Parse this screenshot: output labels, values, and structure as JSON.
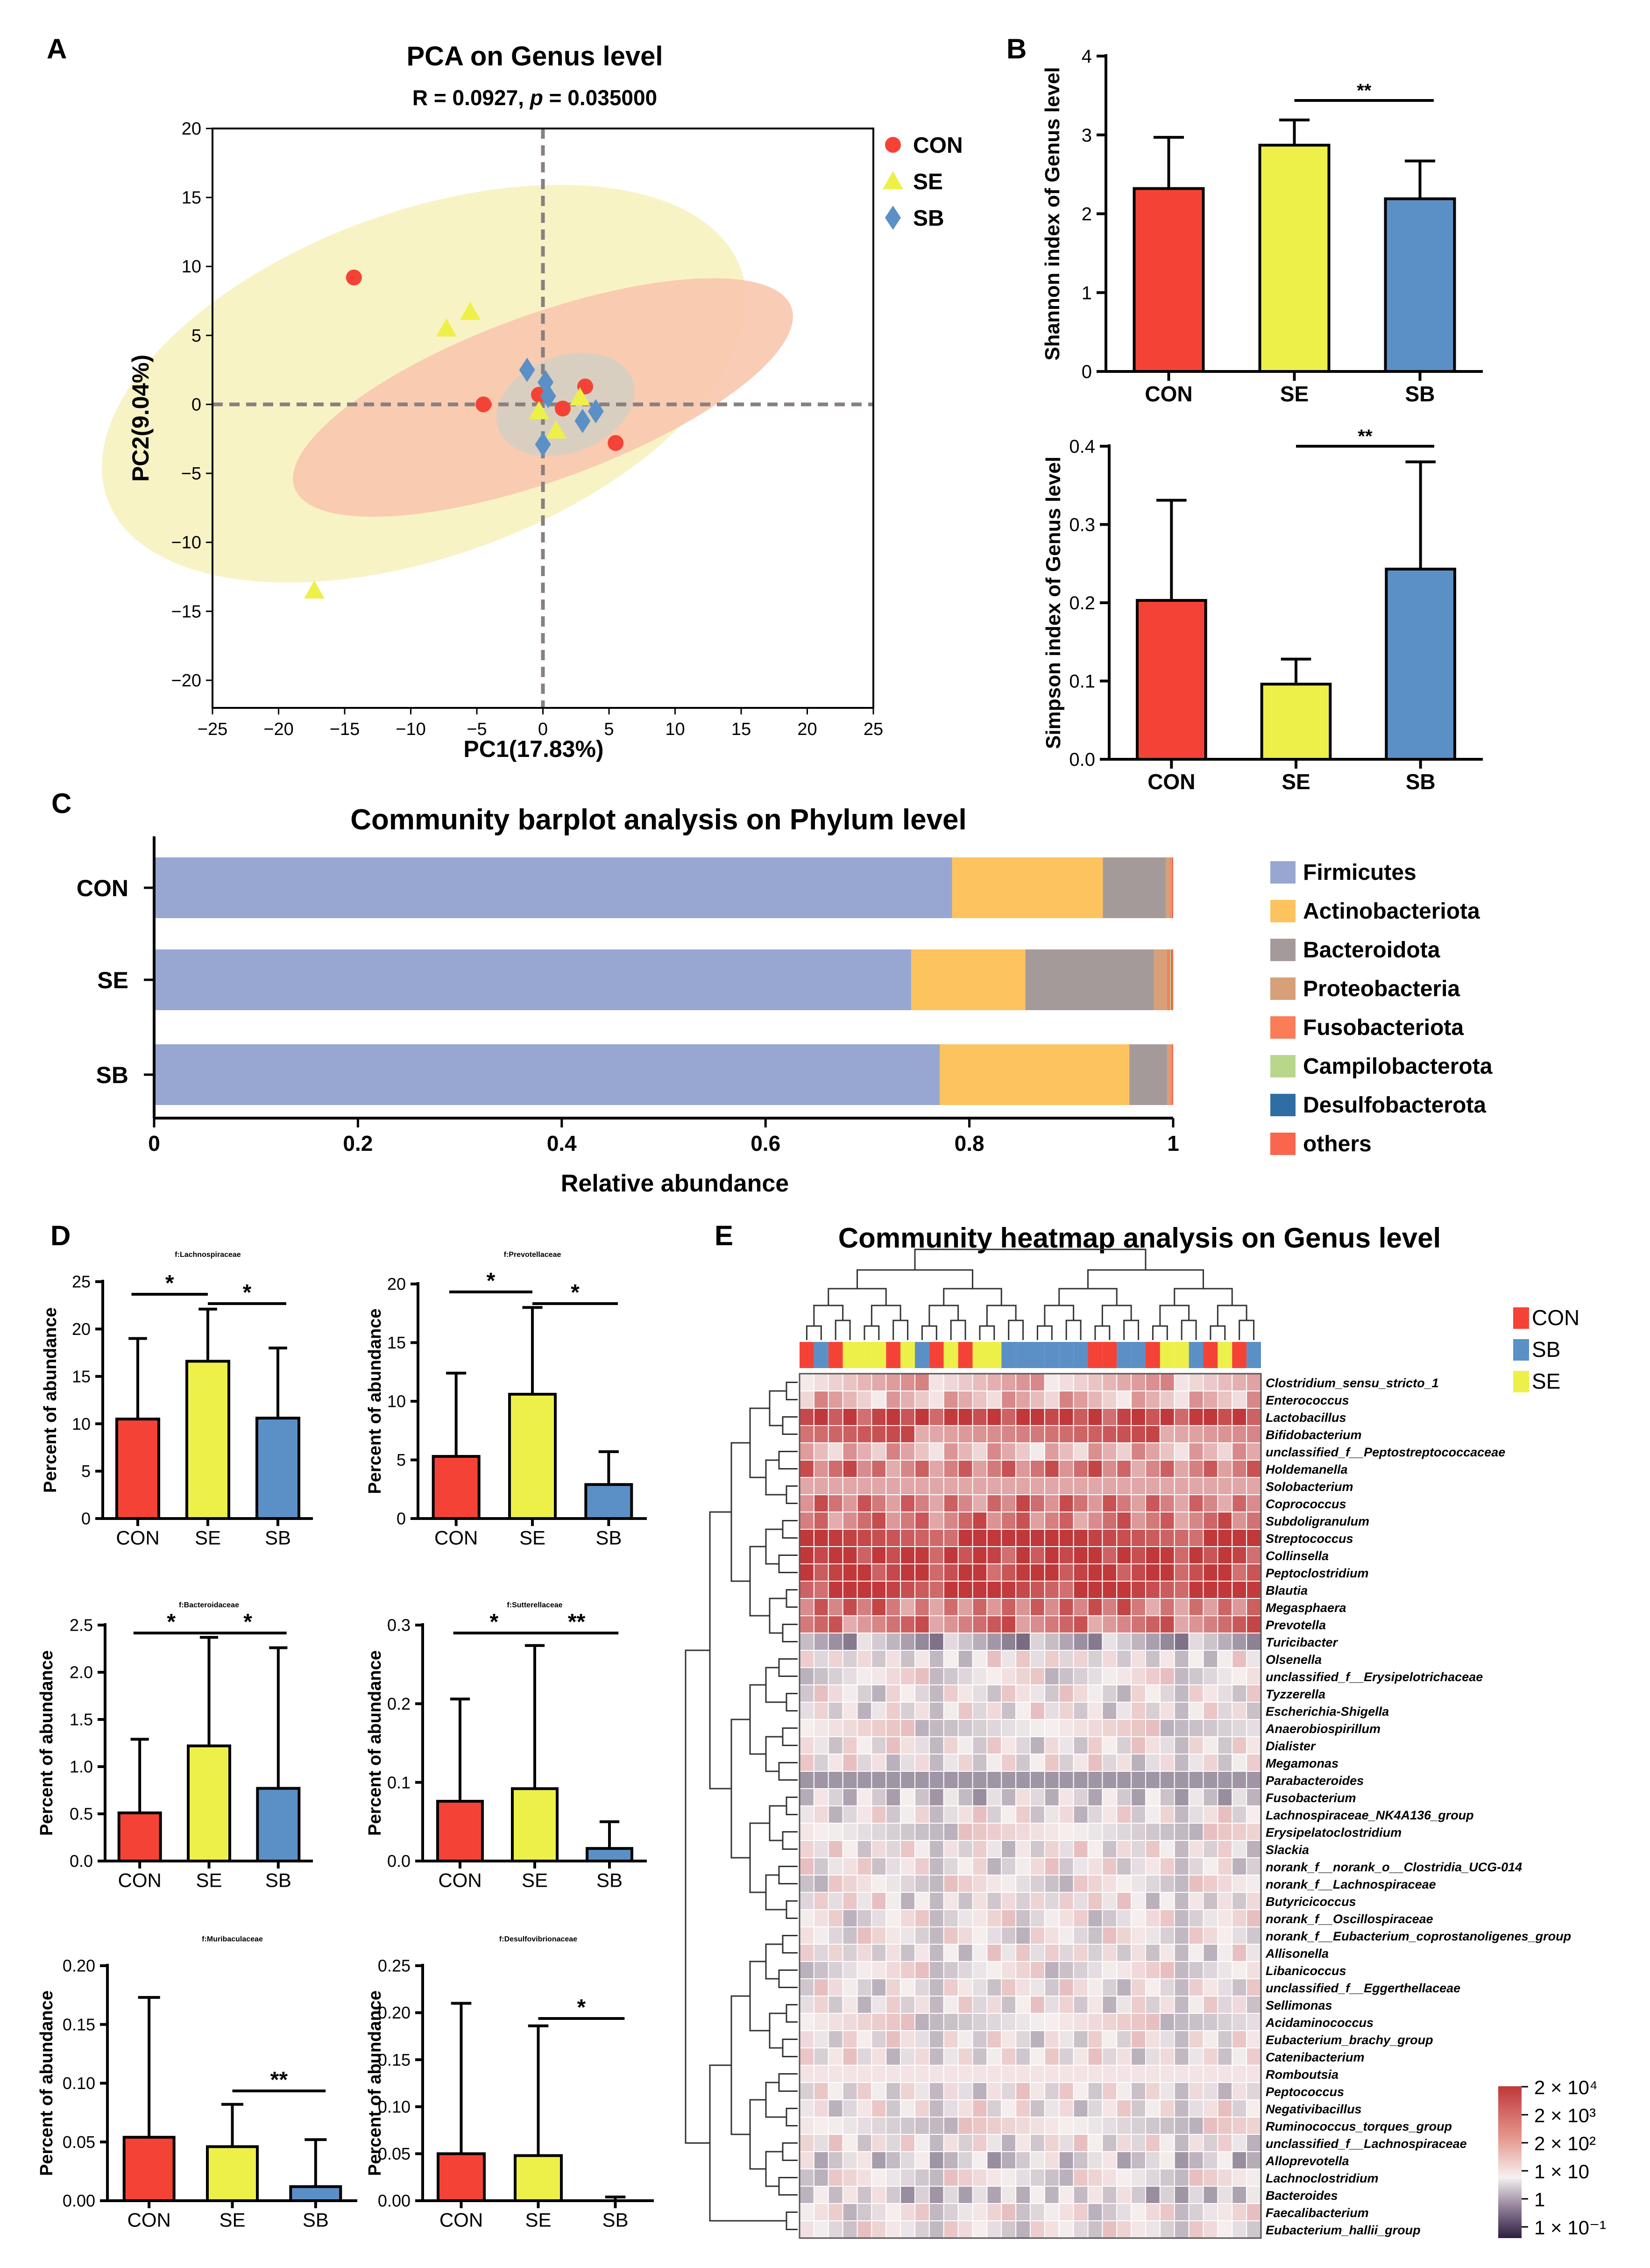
{
  "panel_letters": {
    "a": "A",
    "b": "B",
    "c": "C",
    "d": "D",
    "e": "E"
  },
  "colors": {
    "con": "#f44336",
    "se": "#eef04a",
    "sb": "#5b90c6",
    "axis": "#000000",
    "dash": "#8a7f80"
  },
  "chart_data": [
    {
      "id": "pca",
      "type": "scatter",
      "title": "PCA on Genus level",
      "subtitle_prefix": "R = 0.0927, ",
      "subtitle_p": "p",
      "subtitle_suffix": " = 0.035000",
      "xlabel": "PC1(17.83%)",
      "ylabel": "PC2(9.04%)",
      "xlim": [
        -25,
        25
      ],
      "ylim": [
        -22,
        20
      ],
      "xticks": [
        -25,
        -20,
        -15,
        -10,
        -5,
        0,
        5,
        10,
        15,
        20,
        25
      ],
      "yticks": [
        -20,
        -15,
        -10,
        -5,
        0,
        5,
        10,
        15,
        20
      ],
      "legend": [
        "CON",
        "SE",
        "SB"
      ],
      "series": [
        {
          "name": "CON",
          "marker": "circle",
          "color": "#f44336",
          "points": [
            [
              -14.3,
              9.2
            ],
            [
              -4.5,
              0
            ],
            [
              -0.3,
              0.7
            ],
            [
              1.5,
              -0.3
            ],
            [
              3.2,
              1.3
            ],
            [
              5.5,
              -2.8
            ]
          ]
        },
        {
          "name": "SE",
          "marker": "triangle",
          "color": "#eef04a",
          "points": [
            [
              -5.5,
              6.7
            ],
            [
              -7.3,
              5.5
            ],
            [
              -17.3,
              -13.5
            ],
            [
              -0.3,
              -0.5
            ],
            [
              1.0,
              -1.9
            ],
            [
              2.8,
              0.5
            ]
          ]
        },
        {
          "name": "SB",
          "marker": "diamond",
          "color": "#5b90c6",
          "points": [
            [
              -1.2,
              2.5
            ],
            [
              0.2,
              1.6
            ],
            [
              0.4,
              0.6
            ],
            [
              0,
              -2.9
            ],
            [
              3.0,
              -1.2
            ],
            [
              4.0,
              -0.5
            ]
          ]
        }
      ],
      "ellipses": [
        {
          "group": "SE",
          "center": [
            -9,
            1.5
          ],
          "rx": 25.5,
          "ry": 12.5,
          "rotate": -20,
          "color": "#f7f2bf"
        },
        {
          "group": "CON",
          "center": [
            0,
            0.5
          ],
          "rx": 20,
          "ry": 6,
          "rotate": -20,
          "color": "#f8c6ae"
        },
        {
          "group": "SB",
          "center": [
            1.7,
            0
          ],
          "rx": 5.4,
          "ry": 3.5,
          "rotate": -20,
          "color": "#d5cfc3"
        }
      ]
    },
    {
      "id": "shannon",
      "type": "bar",
      "categories": [
        "CON",
        "SE",
        "SB"
      ],
      "values": [
        2.32,
        2.87,
        2.19
      ],
      "errors": [
        0.65,
        0.32,
        0.48
      ],
      "ylabel": "Shannon index of Genus level",
      "ylim": [
        0,
        4
      ],
      "yticks": [
        0,
        1,
        2,
        3,
        4
      ],
      "sig": [
        {
          "from": 1,
          "to": 2,
          "label": "**"
        }
      ]
    },
    {
      "id": "simpson",
      "type": "bar",
      "categories": [
        "CON",
        "SE",
        "SB"
      ],
      "values": [
        0.203,
        0.096,
        0.243
      ],
      "errors": [
        0.128,
        0.032,
        0.137
      ],
      "ylabel": "Simpson index of Genus level",
      "ylim": [
        0,
        0.4
      ],
      "yticks": [
        "0.0",
        "0.1",
        "0.2",
        "0.3",
        "0.4"
      ],
      "sig": [
        {
          "from": 1,
          "to": 2,
          "label": "**"
        }
      ]
    },
    {
      "id": "phylum",
      "type": "bar",
      "orientation": "horizontal",
      "stacked": true,
      "title": "Community barplot analysis on Phylum level",
      "xlabel": "Relative abundance",
      "xlim": [
        0,
        1
      ],
      "xticks": [
        "0",
        "0.2",
        "0.4",
        "0.6",
        "0.8",
        "1"
      ],
      "categories": [
        "CON",
        "SE",
        "SB"
      ],
      "series": [
        {
          "name": "Firmicutes",
          "color": "#97a7d1",
          "values": [
            0.783,
            0.743,
            0.771
          ]
        },
        {
          "name": "Actinobacteriota",
          "color": "#fcc35e",
          "values": [
            0.148,
            0.112,
            0.186
          ]
        },
        {
          "name": "Bacteroidota",
          "color": "#a49a9a",
          "values": [
            0.062,
            0.126,
            0.037
          ]
        },
        {
          "name": "Proteobacteria",
          "color": "#d7a078",
          "values": [
            0.004,
            0.013,
            0.003
          ]
        },
        {
          "name": "Fusobacteriota",
          "color": "#fb7c58",
          "values": [
            0.001,
            0.003,
            0.001
          ]
        },
        {
          "name": "Campilobacterota",
          "color": "#b9d78c",
          "values": [
            0.0005,
            0.001,
            0.0005
          ]
        },
        {
          "name": "Desulfobacterota",
          "color": "#2f6da5",
          "values": [
            0.0003,
            0.0005,
            0.0003
          ]
        },
        {
          "name": "others",
          "color": "#f9664d",
          "values": [
            0.0012,
            0.0015,
            0.0012
          ]
        }
      ]
    },
    {
      "id": "lachno",
      "type": "bar",
      "title": "f:Lachnospiraceae",
      "categories": [
        "CON",
        "SE",
        "SB"
      ],
      "values": [
        10.5,
        16.6,
        10.6
      ],
      "errors": [
        8.5,
        5.5,
        7.4
      ],
      "ylabel": "Percent of abundance",
      "ylim": [
        0,
        25
      ],
      "yticks": [
        "0",
        "5",
        "10",
        "15",
        "20",
        "25"
      ],
      "sig": [
        {
          "from": 0,
          "to": 1,
          "label": "*"
        },
        {
          "from": 1,
          "to": 2,
          "label": "*"
        }
      ]
    },
    {
      "id": "prevo",
      "type": "bar",
      "title": "f:Prevotellaceae",
      "categories": [
        "CON",
        "SE",
        "SB"
      ],
      "values": [
        5.3,
        10.6,
        2.9
      ],
      "errors": [
        7.1,
        7.4,
        2.8
      ],
      "ylabel": "Percent of abundance",
      "ylim": [
        0,
        20
      ],
      "yticks": [
        "0",
        "5",
        "10",
        "15",
        "20"
      ],
      "sig": [
        {
          "from": 0,
          "to": 1,
          "label": "*"
        },
        {
          "from": 1,
          "to": 2,
          "label": "*"
        }
      ]
    },
    {
      "id": "bactero",
      "type": "bar",
      "title": "f:Bacteroidaceae",
      "categories": [
        "CON",
        "SE",
        "SB"
      ],
      "values": [
        0.51,
        1.22,
        0.77
      ],
      "errors": [
        0.78,
        1.15,
        1.49
      ],
      "ylabel": "Percent of abundance",
      "ylim": [
        0,
        2.5
      ],
      "yticks": [
        "0.0",
        "0.5",
        "1.0",
        "1.5",
        "2.0",
        "2.5"
      ],
      "sig": [
        {
          "from": 0,
          "to": 1,
          "label": "*"
        },
        {
          "from": 1,
          "to": 2,
          "label": "*"
        }
      ]
    },
    {
      "id": "sutter",
      "type": "bar",
      "title": "f:Sutterellaceae",
      "categories": [
        "CON",
        "SE",
        "SB"
      ],
      "values": [
        0.076,
        0.092,
        0.016
      ],
      "errors": [
        0.13,
        0.182,
        0.034
      ],
      "ylabel": "Percent of abundance",
      "ylim": [
        0,
        0.3
      ],
      "yticks": [
        "0.0",
        "0.1",
        "0.2",
        "0.3"
      ],
      "sig": [
        {
          "from": 0,
          "to": 1,
          "label": "*"
        },
        {
          "from": 1,
          "to": 2,
          "label": "**"
        }
      ]
    },
    {
      "id": "muri",
      "type": "bar",
      "title": "f:Muribaculaceae",
      "categories": [
        "CON",
        "SE",
        "SB"
      ],
      "values": [
        0.054,
        0.046,
        0.012
      ],
      "errors": [
        0.119,
        0.036,
        0.04
      ],
      "ylabel": "Percent of abundance",
      "ylim": [
        0,
        0.2
      ],
      "yticks": [
        "0.00",
        "0.05",
        "0.10",
        "0.15",
        "0.20"
      ],
      "sig": [
        {
          "from": 1,
          "to": 2,
          "label": "**"
        }
      ]
    },
    {
      "id": "desulfo",
      "type": "bar",
      "title": "f:Desulfovibrionaceae",
      "categories": [
        "CON",
        "SE",
        "SB"
      ],
      "values": [
        0.05,
        0.048,
        0.0
      ],
      "errors": [
        0.16,
        0.138,
        0.004
      ],
      "ylabel": "Percent of abundance",
      "ylim": [
        0,
        0.25
      ],
      "yticks": [
        "0.00",
        "0.05",
        "0.10",
        "0.15",
        "0.20",
        "0.25"
      ],
      "sig": [
        {
          "from": 1,
          "to": 2,
          "label": "*"
        }
      ]
    },
    {
      "id": "heatmap",
      "type": "heatmap",
      "title": "Community heatmap analysis on Genus level",
      "legend": [
        "CON",
        "SB",
        "SE"
      ],
      "column_groups": [
        "CON",
        "SB",
        "CON",
        "SE",
        "SE",
        "SE",
        "CON",
        "SE",
        "SB",
        "CON",
        "SE",
        "CON",
        "SE",
        "SE",
        "SB",
        "SB",
        "SB",
        "SB",
        "SB",
        "SB",
        "CON",
        "CON",
        "SB",
        "SB",
        "CON",
        "SE",
        "SE",
        "SB",
        "CON",
        "SE",
        "CON",
        "SB"
      ],
      "rows": [
        "Clostridium_sensu_stricto_1",
        "Enterococcus",
        "Lactobacillus",
        "Bifidobacterium",
        "unclassified_f__Peptostreptococcaceae",
        "Holdemanella",
        "Solobacterium",
        "Coprococcus",
        "Subdoligranulum",
        "Streptococcus",
        "Collinsella",
        "Peptoclostridium",
        "Blautia",
        "Megasphaera",
        "Prevotella",
        "Turicibacter",
        "Olsenella",
        "unclassified_f__Erysipelotrichaceae",
        "Tyzzerella",
        "Escherichia-Shigella",
        "Anaerobiospirillum",
        "Dialister",
        "Megamonas",
        "Parabacteroides",
        "Fusobacterium",
        "Lachnospiraceae_NK4A136_group",
        "Erysipelatoclostridium",
        "Slackia",
        "norank_f__norank_o__Clostridia_UCG-014",
        "norank_f__Lachnospiraceae",
        "Butyricicoccus",
        "norank_f__Oscillospiraceae",
        "norank_f__Eubacterium_coprostanoligenes_group",
        "Allisonella",
        "Libanicoccus",
        "unclassified_f__Eggerthellaceae",
        "Sellimonas",
        "Acidaminococcus",
        "Eubacterium_brachy_group",
        "Catenibacterium",
        "Romboutsia",
        "Peptococcus",
        "Negativibacillus",
        "Ruminococcus_torques_group",
        "unclassified_f__Lachnospiraceae",
        "Alloprevotella",
        "Lachnoclostridium",
        "Bacteroides",
        "Faecalibacterium",
        "Eubacterium_hallii_group"
      ],
      "row_level": [
        1,
        1,
        3,
        2,
        1,
        2,
        2,
        2,
        2,
        3,
        3,
        3,
        3,
        2,
        2,
        -1,
        0,
        0,
        0,
        0,
        0,
        0,
        0,
        -0.5,
        -0.5,
        0,
        0,
        0,
        0,
        0,
        0,
        0,
        0,
        0,
        0,
        0,
        0,
        0,
        0,
        0,
        1,
        0,
        0,
        0,
        0,
        -0.5,
        0,
        -0.5,
        0,
        0
      ],
      "colorbar_labels": [
        "2 × 10⁴",
        "2 × 10³",
        "2 × 10²",
        "1 × 10",
        "1",
        "1 × 10⁻¹"
      ]
    }
  ]
}
